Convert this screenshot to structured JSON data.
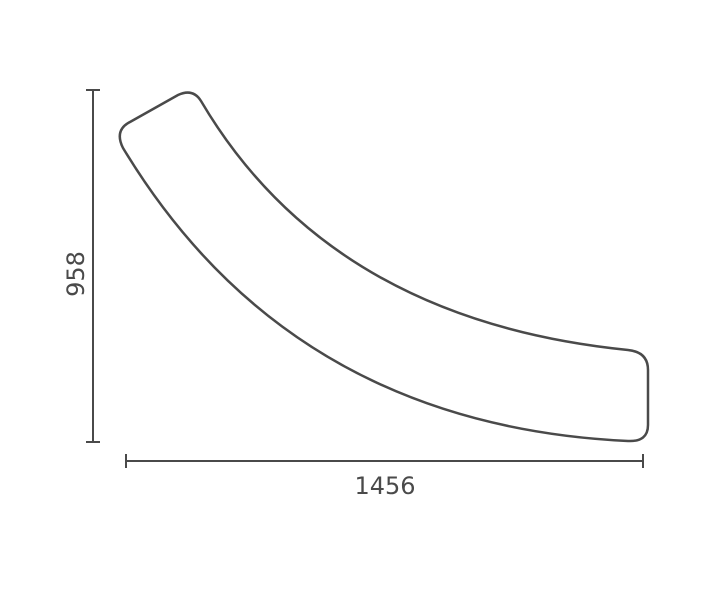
{
  "dimensions": {
    "height": "958",
    "width": "1456"
  }
}
